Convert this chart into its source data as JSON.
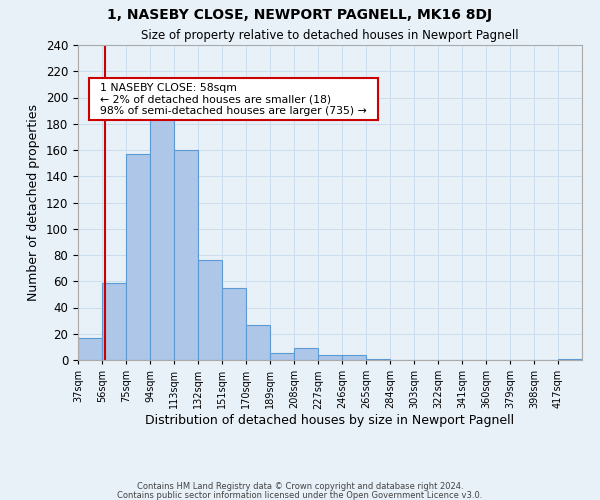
{
  "title": "1, NASEBY CLOSE, NEWPORT PAGNELL, MK16 8DJ",
  "subtitle": "Size of property relative to detached houses in Newport Pagnell",
  "xlabel": "Distribution of detached houses by size in Newport Pagnell",
  "ylabel": "Number of detached properties",
  "bin_labels": [
    "37sqm",
    "56sqm",
    "75sqm",
    "94sqm",
    "113sqm",
    "132sqm",
    "151sqm",
    "170sqm",
    "189sqm",
    "208sqm",
    "227sqm",
    "246sqm",
    "265sqm",
    "284sqm",
    "303sqm",
    "322sqm",
    "341sqm",
    "360sqm",
    "379sqm",
    "398sqm",
    "417sqm"
  ],
  "bin_edges": [
    37,
    56,
    75,
    94,
    113,
    132,
    151,
    170,
    189,
    208,
    227,
    246,
    265,
    284,
    303,
    322,
    341,
    360,
    379,
    398,
    417
  ],
  "bar_heights": [
    17,
    59,
    157,
    185,
    160,
    76,
    55,
    27,
    5,
    9,
    4,
    4,
    1,
    0,
    0,
    0,
    0,
    0,
    0,
    0,
    1
  ],
  "bar_color": "#aec6e8",
  "bar_edge_color": "#5b9bd5",
  "property_line_x": 58,
  "property_line_color": "#cc0000",
  "ylim": [
    0,
    240
  ],
  "yticks": [
    0,
    20,
    40,
    60,
    80,
    100,
    120,
    140,
    160,
    180,
    200,
    220,
    240
  ],
  "annotation_title": "1 NASEBY CLOSE: 58sqm",
  "annotation_line1": "← 2% of detached houses are smaller (18)",
  "annotation_line2": "98% of semi-detached houses are larger (735) →",
  "annotation_box_color": "#ffffff",
  "annotation_box_edge": "#cc0000",
  "grid_color": "#ccddee",
  "background_color": "#e8f0f8",
  "footer1": "Contains HM Land Registry data © Crown copyright and database right 2024.",
  "footer2": "Contains public sector information licensed under the Open Government Licence v3.0."
}
